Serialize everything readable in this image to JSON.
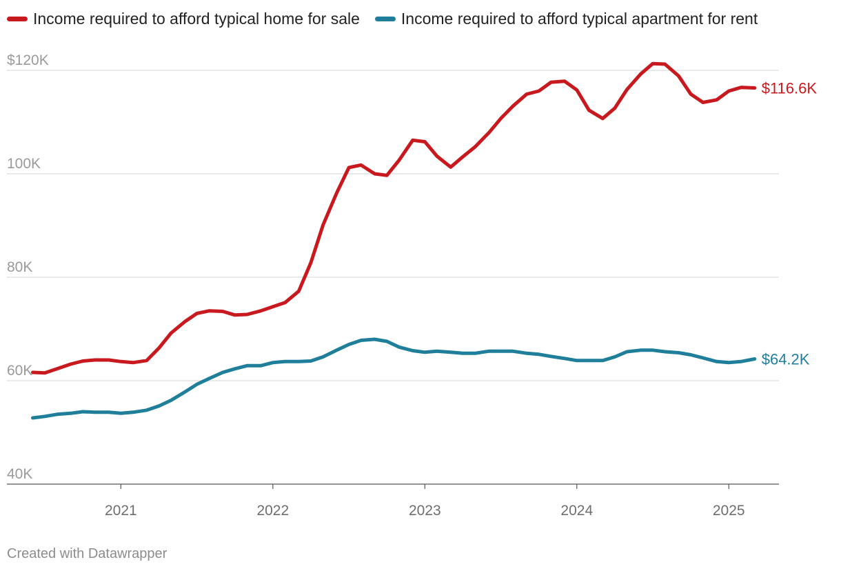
{
  "legend": [
    {
      "label": "Income required to afford typical home for sale",
      "color": "#c7191e"
    },
    {
      "label": "Income required to afford typical apartment for rent",
      "color": "#1f7f9a"
    }
  ],
  "footer": "Created with Datawrapper",
  "chart_data": {
    "type": "line",
    "title": "",
    "xlabel": "",
    "ylabel": "",
    "ylim": [
      40000,
      120000
    ],
    "xlim": [
      2020.25,
      2025.33
    ],
    "grid": true,
    "y_ticks": [
      {
        "value": 120000,
        "label": "$120K"
      },
      {
        "value": 100000,
        "label": "100K"
      },
      {
        "value": 80000,
        "label": "80K"
      },
      {
        "value": 60000,
        "label": "60K"
      },
      {
        "value": 40000,
        "label": "40K"
      }
    ],
    "x_ticks": [
      {
        "value": 2021,
        "label": "2021"
      },
      {
        "value": 2022,
        "label": "2022"
      },
      {
        "value": 2023,
        "label": "2023"
      },
      {
        "value": 2024,
        "label": "2024"
      },
      {
        "value": 2025,
        "label": "2025"
      }
    ],
    "series": [
      {
        "name": "Income required to afford typical home for sale",
        "color": "#c7191e",
        "end_label": "$116.6K",
        "x": [
          2020.42,
          2020.5,
          2020.58,
          2020.67,
          2020.75,
          2020.83,
          2020.92,
          2021.0,
          2021.08,
          2021.17,
          2021.25,
          2021.33,
          2021.42,
          2021.5,
          2021.58,
          2021.67,
          2021.75,
          2021.83,
          2021.92,
          2022.0,
          2022.08,
          2022.17,
          2022.25,
          2022.33,
          2022.42,
          2022.5,
          2022.58,
          2022.67,
          2022.75,
          2022.83,
          2022.92,
          2023.0,
          2023.08,
          2023.17,
          2023.25,
          2023.33,
          2023.42,
          2023.5,
          2023.58,
          2023.67,
          2023.75,
          2023.83,
          2023.92,
          2024.0,
          2024.08,
          2024.17,
          2024.25,
          2024.33,
          2024.42,
          2024.5,
          2024.58,
          2024.67,
          2024.75,
          2024.83,
          2024.92,
          2025.0,
          2025.08,
          2025.17
        ],
        "y": [
          61600,
          61500,
          62300,
          63200,
          63800,
          64000,
          64000,
          63700,
          63500,
          63900,
          66300,
          69200,
          71400,
          73000,
          73500,
          73400,
          72700,
          72800,
          73500,
          74300,
          75100,
          77300,
          82800,
          90100,
          96300,
          101200,
          101700,
          100000,
          99700,
          102600,
          106500,
          106200,
          103400,
          101300,
          103300,
          105200,
          107900,
          110700,
          113100,
          115400,
          116000,
          117700,
          117900,
          116200,
          112300,
          110700,
          112700,
          116300,
          119300,
          121300,
          121200,
          118900,
          115400,
          113800,
          114300,
          116000,
          116700,
          116600
        ]
      },
      {
        "name": "Income required to afford typical apartment for rent",
        "color": "#1f7f9a",
        "end_label": "$64.2K",
        "x": [
          2020.42,
          2020.5,
          2020.58,
          2020.67,
          2020.75,
          2020.83,
          2020.92,
          2021.0,
          2021.08,
          2021.17,
          2021.25,
          2021.33,
          2021.42,
          2021.5,
          2021.58,
          2021.67,
          2021.75,
          2021.83,
          2021.92,
          2022.0,
          2022.08,
          2022.17,
          2022.25,
          2022.33,
          2022.42,
          2022.5,
          2022.58,
          2022.67,
          2022.75,
          2022.83,
          2022.92,
          2023.0,
          2023.08,
          2023.17,
          2023.25,
          2023.33,
          2023.42,
          2023.5,
          2023.58,
          2023.67,
          2023.75,
          2023.83,
          2023.92,
          2024.0,
          2024.08,
          2024.17,
          2024.25,
          2024.33,
          2024.42,
          2024.5,
          2024.58,
          2024.67,
          2024.75,
          2024.83,
          2024.92,
          2025.0,
          2025.08,
          2025.17
        ],
        "y": [
          52800,
          53100,
          53500,
          53700,
          54000,
          53900,
          53900,
          53700,
          53900,
          54300,
          55100,
          56200,
          57800,
          59300,
          60400,
          61600,
          62300,
          62900,
          62900,
          63500,
          63700,
          63700,
          63800,
          64600,
          65900,
          67000,
          67800,
          68000,
          67600,
          66500,
          65800,
          65500,
          65700,
          65500,
          65300,
          65300,
          65700,
          65700,
          65700,
          65300,
          65100,
          64700,
          64300,
          63900,
          63900,
          63900,
          64600,
          65600,
          65900,
          65900,
          65600,
          65400,
          65000,
          64400,
          63700,
          63500,
          63700,
          64200
        ]
      }
    ]
  }
}
